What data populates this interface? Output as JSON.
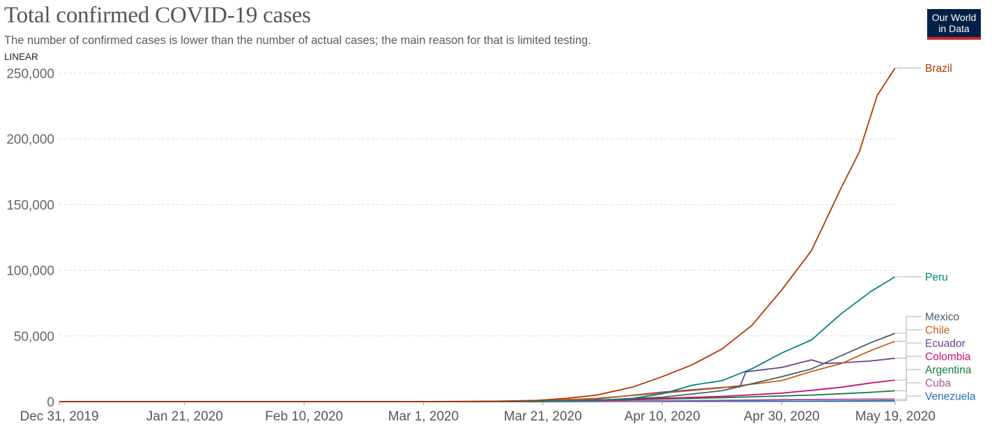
{
  "header": {
    "title": "Total confirmed COVID-19 cases",
    "subtitle": "The number of confirmed cases is lower than the number of actual cases; the main reason for that is limited testing.",
    "scale_toggle": "LINEAR",
    "logo_line1": "Our World",
    "logo_line2": "in Data"
  },
  "chart_data": {
    "type": "line",
    "title": "Total confirmed COVID-19 cases",
    "subtitle": "The number of confirmed cases is lower than the number of actual cases; the main reason for that is limited testing.",
    "y_scale": "linear",
    "ylim": [
      0,
      250000
    ],
    "y_ticks": [
      0,
      50000,
      100000,
      150000,
      200000,
      250000
    ],
    "y_tick_labels": [
      "0",
      "50,000",
      "100,000",
      "150,000",
      "200,000",
      "250,000"
    ],
    "x_range": [
      "2019-12-31",
      "2020-05-19"
    ],
    "x_ticks": [
      "2019-12-31",
      "2020-01-21",
      "2020-02-10",
      "2020-03-01",
      "2020-03-21",
      "2020-04-10",
      "2020-04-30",
      "2020-05-19"
    ],
    "x_tick_labels": [
      "Dec 31, 2019",
      "Jan 21, 2020",
      "Feb 10, 2020",
      "Mar 1, 2020",
      "Mar 21, 2020",
      "Apr 10, 2020",
      "Apr 30, 2020",
      "May 19, 2020"
    ],
    "grid": "horizontal dashed",
    "legend": "line-end labels, right",
    "series": [
      {
        "name": "Brazil",
        "color": "#b13507",
        "x": [
          "2019-12-31",
          "2020-02-26",
          "2020-03-10",
          "2020-03-20",
          "2020-03-25",
          "2020-03-30",
          "2020-04-05",
          "2020-04-10",
          "2020-04-15",
          "2020-04-20",
          "2020-04-25",
          "2020-04-30",
          "2020-05-05",
          "2020-05-10",
          "2020-05-13",
          "2020-05-16",
          "2020-05-19"
        ],
        "y": [
          0,
          0,
          30,
          900,
          2500,
          5000,
          11000,
          19000,
          28000,
          40000,
          58000,
          85000,
          115000,
          163000,
          190000,
          233000,
          254000
        ]
      },
      {
        "name": "Peru",
        "color": "#00847e",
        "x": [
          "2019-12-31",
          "2020-03-06",
          "2020-03-20",
          "2020-03-30",
          "2020-04-05",
          "2020-04-10",
          "2020-04-15",
          "2020-04-20",
          "2020-04-25",
          "2020-04-30",
          "2020-05-05",
          "2020-05-10",
          "2020-05-15",
          "2020-05-19"
        ],
        "y": [
          0,
          0,
          230,
          1000,
          2500,
          5900,
          12500,
          16000,
          25000,
          37000,
          47000,
          67000,
          84000,
          95000
        ]
      },
      {
        "name": "Mexico",
        "color": "#4c5c68",
        "x": [
          "2019-12-31",
          "2020-02-28",
          "2020-03-20",
          "2020-03-30",
          "2020-04-10",
          "2020-04-20",
          "2020-04-30",
          "2020-05-05",
          "2020-05-10",
          "2020-05-15",
          "2020-05-19"
        ],
        "y": [
          0,
          0,
          160,
          1100,
          3400,
          8300,
          19000,
          24900,
          35000,
          45000,
          52000
        ]
      },
      {
        "name": "Chile",
        "color": "#c15e17",
        "x": [
          "2019-12-31",
          "2020-03-03",
          "2020-03-20",
          "2020-03-30",
          "2020-04-10",
          "2020-04-20",
          "2020-04-30",
          "2020-05-05",
          "2020-05-10",
          "2020-05-15",
          "2020-05-19"
        ],
        "y": [
          0,
          0,
          400,
          2500,
          6500,
          10500,
          16000,
          23000,
          29000,
          39000,
          46000
        ]
      },
      {
        "name": "Ecuador",
        "color": "#6d3e91",
        "x": [
          "2019-12-31",
          "2020-03-01",
          "2020-03-20",
          "2020-03-30",
          "2020-04-10",
          "2020-04-20",
          "2020-04-23",
          "2020-04-24",
          "2020-04-30",
          "2020-05-05",
          "2020-05-07",
          "2020-05-10",
          "2020-05-15",
          "2020-05-19"
        ],
        "y": [
          0,
          0,
          400,
          2000,
          7200,
          10800,
          11200,
          22700,
          26000,
          31800,
          29000,
          29500,
          31000,
          33000
        ]
      },
      {
        "name": "Colombia",
        "color": "#c9126b",
        "x": [
          "2019-12-31",
          "2020-03-06",
          "2020-03-20",
          "2020-03-30",
          "2020-04-10",
          "2020-04-20",
          "2020-04-30",
          "2020-05-05",
          "2020-05-10",
          "2020-05-15",
          "2020-05-19"
        ],
        "y": [
          0,
          0,
          150,
          800,
          2500,
          4000,
          6500,
          8600,
          11000,
          14200,
          16400
        ]
      },
      {
        "name": "Argentina",
        "color": "#18793b",
        "x": [
          "2019-12-31",
          "2020-03-03",
          "2020-03-20",
          "2020-03-30",
          "2020-04-10",
          "2020-04-20",
          "2020-04-30",
          "2020-05-05",
          "2020-05-10",
          "2020-05-15",
          "2020-05-19"
        ],
        "y": [
          0,
          0,
          100,
          800,
          1900,
          3000,
          4300,
          5000,
          6000,
          7100,
          8300
        ]
      },
      {
        "name": "Cuba",
        "color": "#a2559c",
        "x": [
          "2019-12-31",
          "2020-03-11",
          "2020-03-30",
          "2020-04-10",
          "2020-04-20",
          "2020-04-30",
          "2020-05-10",
          "2020-05-19"
        ],
        "y": [
          0,
          0,
          170,
          560,
          1000,
          1500,
          1760,
          1890
        ]
      },
      {
        "name": "Venezuela",
        "color": "#286bbb",
        "x": [
          "2019-12-31",
          "2020-03-13",
          "2020-03-30",
          "2020-04-10",
          "2020-04-20",
          "2020-04-30",
          "2020-05-10",
          "2020-05-19"
        ],
        "y": [
          0,
          0,
          130,
          170,
          260,
          330,
          420,
          750
        ]
      }
    ]
  }
}
